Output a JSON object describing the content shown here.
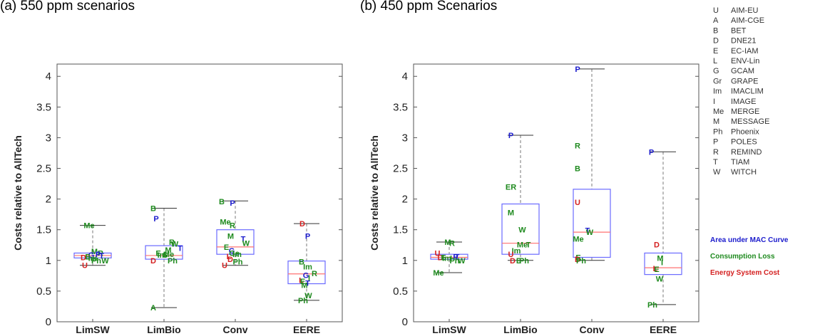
{
  "colors": {
    "area_under_mac": "#1a1acc",
    "consumption_loss": "#1e8a1e",
    "energy_system_cost": "#d42020",
    "box": "#6a6aff",
    "median": "#ff7070",
    "whisker": "#777777"
  },
  "model_key": {
    "codes": [
      "U",
      "A",
      "B",
      "D",
      "E",
      "L",
      "G",
      "Gr",
      "Im",
      "I",
      "Me",
      "M",
      "Ph",
      "P",
      "R",
      "T",
      "W"
    ],
    "names": [
      "AIM-EU",
      "AIM-CGE",
      "BET",
      "DNE21",
      "EC-IAM",
      "ENV-Lin",
      "GCAM",
      "GRAPE",
      "IMACLIM",
      "IMAGE",
      "MERGE",
      "MESSAGE",
      "Phoenix",
      "POLES",
      "REMIND",
      "TIAM",
      "WITCH"
    ]
  },
  "legend": {
    "area": "Area under MAC Curve",
    "consumption": "Consumption Loss",
    "energy": "Energy System Cost"
  },
  "chart_data": [
    {
      "type": "box",
      "title": "(a) 550 ppm scenarios",
      "ylabel": "Costs relative to AllTech",
      "ylim": [
        0,
        4.2
      ],
      "yticks": [
        "0",
        "0.5",
        "1",
        "1.5",
        "2",
        "2.5",
        "3",
        "3.5",
        "4"
      ],
      "categories": [
        "LimSW",
        "LimBio",
        "Conv",
        "EERE"
      ],
      "boxes": [
        {
          "q1": 1.04,
          "median": 1.08,
          "q3": 1.12,
          "whisker_low": 0.92,
          "whisker_high": 1.57
        },
        {
          "q1": 1.02,
          "median": 1.08,
          "q3": 1.24,
          "whisker_low": 0.23,
          "whisker_high": 1.85
        },
        {
          "q1": 1.1,
          "median": 1.22,
          "q3": 1.5,
          "whisker_low": 0.92,
          "whisker_high": 1.97
        },
        {
          "q1": 0.62,
          "median": 0.78,
          "q3": 0.99,
          "whisker_low": 0.35,
          "whisker_high": 1.6
        }
      ],
      "points": [
        {
          "cat": 0,
          "dx": -0.1,
          "y": 1.57,
          "label": "Me",
          "metric": "consumption"
        },
        {
          "cat": 0,
          "dx": 0.05,
          "y": 1.15,
          "label": "M",
          "metric": "consumption"
        },
        {
          "cat": 0,
          "dx": 0.22,
          "y": 1.12,
          "label": "R",
          "metric": "consumption"
        },
        {
          "cat": 0,
          "dx": -0.04,
          "y": 1.09,
          "label": "G",
          "metric": "area"
        },
        {
          "cat": 0,
          "dx": 0.15,
          "y": 1.1,
          "label": "P",
          "metric": "area"
        },
        {
          "cat": 0,
          "dx": 0.25,
          "y": 1.08,
          "label": "T",
          "metric": "area"
        },
        {
          "cat": 0,
          "dx": -0.26,
          "y": 1.05,
          "label": "D",
          "metric": "energy"
        },
        {
          "cat": 0,
          "dx": -0.14,
          "y": 1.06,
          "label": "E",
          "metric": "consumption"
        },
        {
          "cat": 0,
          "dx": 0.0,
          "y": 1.04,
          "label": "Im",
          "metric": "consumption"
        },
        {
          "cat": 0,
          "dx": 0.1,
          "y": 1.0,
          "label": "Ph",
          "metric": "consumption"
        },
        {
          "cat": 0,
          "dx": 0.35,
          "y": 1.0,
          "label": "W",
          "metric": "consumption"
        },
        {
          "cat": 0,
          "dx": -0.22,
          "y": 0.92,
          "label": "U",
          "metric": "energy"
        },
        {
          "cat": 1,
          "dx": -0.3,
          "y": 1.85,
          "label": "B",
          "metric": "consumption"
        },
        {
          "cat": 1,
          "dx": -0.22,
          "y": 1.68,
          "label": "P",
          "metric": "area"
        },
        {
          "cat": 1,
          "dx": 0.22,
          "y": 1.3,
          "label": "R",
          "metric": "consumption"
        },
        {
          "cat": 1,
          "dx": 0.3,
          "y": 1.27,
          "label": "W",
          "metric": "consumption"
        },
        {
          "cat": 1,
          "dx": 0.45,
          "y": 1.2,
          "label": "T",
          "metric": "area"
        },
        {
          "cat": 1,
          "dx": 0.12,
          "y": 1.17,
          "label": "M",
          "metric": "consumption"
        },
        {
          "cat": 1,
          "dx": -0.16,
          "y": 1.12,
          "label": "E",
          "metric": "consumption"
        },
        {
          "cat": 1,
          "dx": -0.06,
          "y": 1.09,
          "label": "Im",
          "metric": "consumption"
        },
        {
          "cat": 1,
          "dx": 0.03,
          "y": 1.09,
          "label": "G",
          "metric": "consumption"
        },
        {
          "cat": 1,
          "dx": 0.13,
          "y": 1.1,
          "label": "Me",
          "metric": "consumption"
        },
        {
          "cat": 1,
          "dx": 0.24,
          "y": 1.0,
          "label": "Ph",
          "metric": "consumption"
        },
        {
          "cat": 1,
          "dx": -0.3,
          "y": 1.0,
          "label": "D",
          "metric": "energy"
        },
        {
          "cat": 1,
          "dx": -0.3,
          "y": 0.23,
          "label": "A",
          "metric": "consumption"
        },
        {
          "cat": 2,
          "dx": -0.38,
          "y": 1.96,
          "label": "B",
          "metric": "consumption"
        },
        {
          "cat": 2,
          "dx": -0.08,
          "y": 1.94,
          "label": "P",
          "metric": "area"
        },
        {
          "cat": 2,
          "dx": -0.28,
          "y": 1.63,
          "label": "Me",
          "metric": "consumption"
        },
        {
          "cat": 2,
          "dx": -0.08,
          "y": 1.57,
          "label": "R",
          "metric": "consumption"
        },
        {
          "cat": 2,
          "dx": -0.13,
          "y": 1.4,
          "label": "M",
          "metric": "consumption"
        },
        {
          "cat": 2,
          "dx": 0.22,
          "y": 1.35,
          "label": "T",
          "metric": "area"
        },
        {
          "cat": 2,
          "dx": 0.3,
          "y": 1.28,
          "label": "W",
          "metric": "consumption"
        },
        {
          "cat": 2,
          "dx": -0.25,
          "y": 1.22,
          "label": "E",
          "metric": "consumption"
        },
        {
          "cat": 2,
          "dx": -0.1,
          "y": 1.16,
          "label": "G",
          "metric": "area"
        },
        {
          "cat": 2,
          "dx": -0.03,
          "y": 1.12,
          "label": "Ge",
          "metric": "consumption"
        },
        {
          "cat": 2,
          "dx": 0.05,
          "y": 1.1,
          "label": "Im",
          "metric": "consumption"
        },
        {
          "cat": 2,
          "dx": -0.18,
          "y": 1.07,
          "label": "L",
          "metric": "energy"
        },
        {
          "cat": 2,
          "dx": -0.14,
          "y": 1.02,
          "label": "D",
          "metric": "energy"
        },
        {
          "cat": 2,
          "dx": 0.07,
          "y": 0.98,
          "label": "Ph",
          "metric": "consumption"
        },
        {
          "cat": 2,
          "dx": -0.3,
          "y": 0.92,
          "label": "U",
          "metric": "energy"
        },
        {
          "cat": 3,
          "dx": -0.12,
          "y": 1.6,
          "label": "D",
          "metric": "energy"
        },
        {
          "cat": 3,
          "dx": 0.03,
          "y": 1.4,
          "label": "P",
          "metric": "area"
        },
        {
          "cat": 3,
          "dx": -0.14,
          "y": 0.98,
          "label": "B",
          "metric": "consumption"
        },
        {
          "cat": 3,
          "dx": 0.03,
          "y": 0.9,
          "label": "Im",
          "metric": "consumption"
        },
        {
          "cat": 3,
          "dx": 0.22,
          "y": 0.79,
          "label": "R",
          "metric": "consumption"
        },
        {
          "cat": 3,
          "dx": -0.02,
          "y": 0.76,
          "label": "G",
          "metric": "area"
        },
        {
          "cat": 3,
          "dx": 0.07,
          "y": 0.72,
          "label": "I",
          "metric": "consumption"
        },
        {
          "cat": 3,
          "dx": -0.15,
          "y": 0.68,
          "label": "L",
          "metric": "energy"
        },
        {
          "cat": 3,
          "dx": -0.11,
          "y": 0.66,
          "label": "E",
          "metric": "consumption"
        },
        {
          "cat": 3,
          "dx": -0.06,
          "y": 0.6,
          "label": "M",
          "metric": "consumption"
        },
        {
          "cat": 3,
          "dx": 0.03,
          "y": 0.63,
          "label": "T",
          "metric": "area"
        },
        {
          "cat": 3,
          "dx": 0.05,
          "y": 0.43,
          "label": "W",
          "metric": "consumption"
        },
        {
          "cat": 3,
          "dx": -0.1,
          "y": 0.35,
          "label": "Ph",
          "metric": "consumption"
        }
      ]
    },
    {
      "type": "box",
      "title": "(b) 450 ppm Scenarios",
      "ylabel": "Costs relative to AllTech",
      "ylim": [
        0,
        4.2
      ],
      "yticks": [
        "0",
        "0.5",
        "1",
        "1.5",
        "2",
        "2.5",
        "3",
        "3.5",
        "4"
      ],
      "categories": [
        "LimSW",
        "LimBio",
        "Conv",
        "EERE"
      ],
      "boxes": [
        {
          "q1": 1.02,
          "median": 1.05,
          "q3": 1.1,
          "whisker_low": 0.8,
          "whisker_high": 1.3
        },
        {
          "q1": 1.1,
          "median": 1.28,
          "q3": 1.92,
          "whisker_low": 1.0,
          "whisker_high": 3.04
        },
        {
          "q1": 1.05,
          "median": 1.46,
          "q3": 2.16,
          "whisker_low": 1.0,
          "whisker_high": 4.12
        },
        {
          "q1": 0.77,
          "median": 0.88,
          "q3": 1.12,
          "whisker_low": 0.28,
          "whisker_high": 2.77
        }
      ],
      "points": [
        {
          "cat": 0,
          "dx": -0.04,
          "y": 1.3,
          "label": "M",
          "metric": "consumption"
        },
        {
          "cat": 0,
          "dx": 0.08,
          "y": 1.28,
          "label": "R",
          "metric": "consumption"
        },
        {
          "cat": 0,
          "dx": -0.33,
          "y": 1.12,
          "label": "U",
          "metric": "energy"
        },
        {
          "cat": 0,
          "dx": -0.25,
          "y": 1.05,
          "label": "D",
          "metric": "energy"
        },
        {
          "cat": 0,
          "dx": -0.16,
          "y": 1.05,
          "label": "E",
          "metric": "consumption"
        },
        {
          "cat": 0,
          "dx": -0.07,
          "y": 1.04,
          "label": "Im",
          "metric": "consumption"
        },
        {
          "cat": 0,
          "dx": 0.05,
          "y": 1.04,
          "label": "I",
          "metric": "consumption"
        },
        {
          "cat": 0,
          "dx": 0.18,
          "y": 1.06,
          "label": "P",
          "metric": "area"
        },
        {
          "cat": 0,
          "dx": 0.22,
          "y": 1.06,
          "label": "T",
          "metric": "area"
        },
        {
          "cat": 0,
          "dx": 0.15,
          "y": 1.0,
          "label": "Ph",
          "metric": "consumption"
        },
        {
          "cat": 0,
          "dx": 0.35,
          "y": 1.0,
          "label": "W",
          "metric": "consumption"
        },
        {
          "cat": 0,
          "dx": -0.3,
          "y": 0.8,
          "label": "Me",
          "metric": "consumption"
        },
        {
          "cat": 1,
          "dx": -0.27,
          "y": 3.04,
          "label": "P",
          "metric": "area"
        },
        {
          "cat": 1,
          "dx": -0.27,
          "y": 2.2,
          "label": "ER",
          "metric": "consumption"
        },
        {
          "cat": 1,
          "dx": -0.27,
          "y": 1.78,
          "label": "M",
          "metric": "consumption"
        },
        {
          "cat": 1,
          "dx": 0.05,
          "y": 1.5,
          "label": "W",
          "metric": "consumption"
        },
        {
          "cat": 1,
          "dx": 0.05,
          "y": 1.26,
          "label": "Me",
          "metric": "consumption"
        },
        {
          "cat": 1,
          "dx": 0.22,
          "y": 1.26,
          "label": "T",
          "metric": "consumption"
        },
        {
          "cat": 1,
          "dx": -0.12,
          "y": 1.16,
          "label": "Im",
          "metric": "consumption"
        },
        {
          "cat": 1,
          "dx": -0.27,
          "y": 1.1,
          "label": "U",
          "metric": "energy"
        },
        {
          "cat": 1,
          "dx": -0.22,
          "y": 1.0,
          "label": "D",
          "metric": "energy"
        },
        {
          "cat": 1,
          "dx": -0.05,
          "y": 1.0,
          "label": "E",
          "metric": "consumption"
        },
        {
          "cat": 1,
          "dx": 0.1,
          "y": 1.0,
          "label": "Ph",
          "metric": "consumption"
        },
        {
          "cat": 2,
          "dx": -0.4,
          "y": 4.12,
          "label": "P",
          "metric": "area"
        },
        {
          "cat": 2,
          "dx": -0.4,
          "y": 2.87,
          "label": "R",
          "metric": "consumption"
        },
        {
          "cat": 2,
          "dx": -0.4,
          "y": 2.5,
          "label": "B",
          "metric": "consumption"
        },
        {
          "cat": 2,
          "dx": -0.4,
          "y": 1.95,
          "label": "U",
          "metric": "energy"
        },
        {
          "cat": 2,
          "dx": -0.12,
          "y": 1.49,
          "label": "T",
          "metric": "area"
        },
        {
          "cat": 2,
          "dx": -0.06,
          "y": 1.46,
          "label": "W",
          "metric": "consumption"
        },
        {
          "cat": 2,
          "dx": -0.38,
          "y": 1.35,
          "label": "Me",
          "metric": "consumption"
        },
        {
          "cat": 2,
          "dx": -0.38,
          "y": 1.05,
          "label": "E",
          "metric": "consumption"
        },
        {
          "cat": 2,
          "dx": -0.4,
          "y": 1.02,
          "label": "D",
          "metric": "energy"
        },
        {
          "cat": 2,
          "dx": -0.3,
          "y": 1.0,
          "label": "Ph",
          "metric": "consumption"
        },
        {
          "cat": 3,
          "dx": -0.33,
          "y": 2.77,
          "label": "P",
          "metric": "area"
        },
        {
          "cat": 3,
          "dx": -0.18,
          "y": 1.26,
          "label": "D",
          "metric": "energy"
        },
        {
          "cat": 3,
          "dx": -0.08,
          "y": 1.04,
          "label": "M",
          "metric": "consumption"
        },
        {
          "cat": 3,
          "dx": -0.03,
          "y": 0.97,
          "label": "I",
          "metric": "consumption"
        },
        {
          "cat": 3,
          "dx": -0.22,
          "y": 0.87,
          "label": "L",
          "metric": "energy"
        },
        {
          "cat": 3,
          "dx": -0.18,
          "y": 0.86,
          "label": "E",
          "metric": "consumption"
        },
        {
          "cat": 3,
          "dx": -0.1,
          "y": 0.7,
          "label": "W",
          "metric": "consumption"
        },
        {
          "cat": 3,
          "dx": -0.3,
          "y": 0.28,
          "label": "Ph",
          "metric": "consumption"
        }
      ]
    }
  ]
}
